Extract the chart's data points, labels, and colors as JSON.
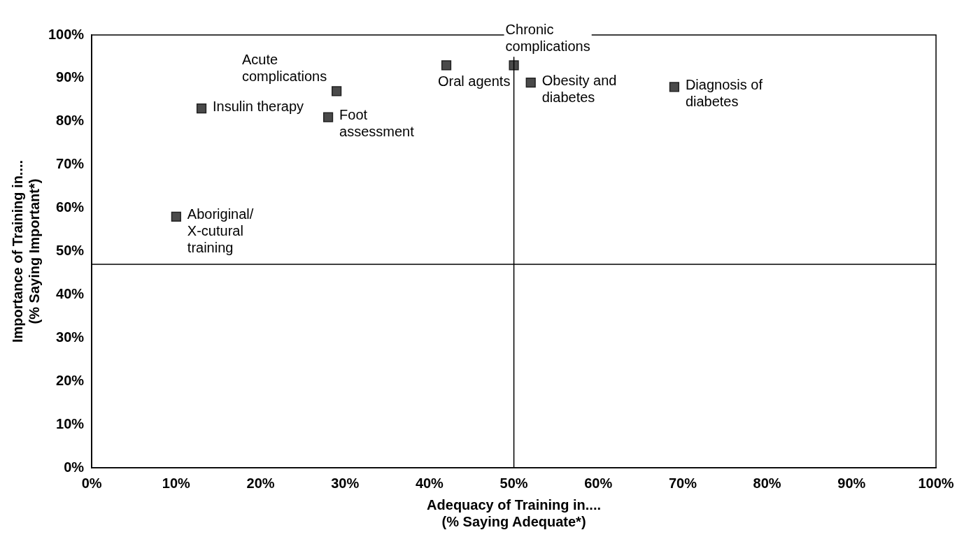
{
  "chart_data": {
    "type": "scatter",
    "xlabel": "Adequacy of Training in....\n(% Saying Adequate*)",
    "ylabel": "Importance of Training in....\n(% Saying Important*)",
    "series": [
      {
        "color": "#4a4a4a",
        "x": [
          13,
          10,
          28,
          29,
          42,
          50,
          52,
          69
        ],
        "values": [
          83,
          58,
          81,
          87,
          93,
          93,
          89,
          88
        ]
      }
    ],
    "annotations": [
      {
        "text": "Insulin therapy",
        "x": 13,
        "y": 83
      },
      {
        "text": "Aboriginal/ X-cutural training",
        "x": 10,
        "y": 58
      },
      {
        "text": "Foot assessment",
        "x": 28,
        "y": 81
      },
      {
        "text": "Acute complications",
        "x": 29,
        "y": 87
      },
      {
        "text": "Oral agents",
        "x": 42,
        "y": 93
      },
      {
        "text": "Chronic complications",
        "x": 50,
        "y": 93
      },
      {
        "text": "Obesity and diabetes",
        "x": 52,
        "y": 89
      },
      {
        "text": "Diagnosis of diabetes",
        "x": 69,
        "y": 88
      }
    ],
    "ref_lines": [
      {
        "axis": "x",
        "value": 50,
        "color": "#000000"
      },
      {
        "axis": "y",
        "value": 47,
        "color": "#000000"
      }
    ],
    "xlim": [
      0,
      100
    ],
    "ylim": [
      0,
      100
    ],
    "xticks": [
      {
        "value": 0,
        "label": "0%"
      },
      {
        "value": 10,
        "label": "10%"
      },
      {
        "value": 20,
        "label": "20%"
      },
      {
        "value": 30,
        "label": "30%"
      },
      {
        "value": 40,
        "label": "40%"
      },
      {
        "value": 50,
        "label": "50%"
      },
      {
        "value": 60,
        "label": "60%"
      },
      {
        "value": 70,
        "label": "70%"
      },
      {
        "value": 80,
        "label": "80%"
      },
      {
        "value": 90,
        "label": "90%"
      },
      {
        "value": 100,
        "label": "100%"
      }
    ],
    "yticks": [
      {
        "value": 0,
        "label": "0%"
      },
      {
        "value": 10,
        "label": "10%"
      },
      {
        "value": 20,
        "label": "20%"
      },
      {
        "value": 30,
        "label": "30%"
      },
      {
        "value": 40,
        "label": "40%"
      },
      {
        "value": 50,
        "label": "50%"
      },
      {
        "value": 60,
        "label": "60%"
      },
      {
        "value": 70,
        "label": "70%"
      },
      {
        "value": 80,
        "label": "80%"
      },
      {
        "value": 90,
        "label": "90%"
      },
      {
        "value": 100,
        "label": "100%"
      }
    ],
    "grid": false,
    "legend": false,
    "marker": "square"
  }
}
